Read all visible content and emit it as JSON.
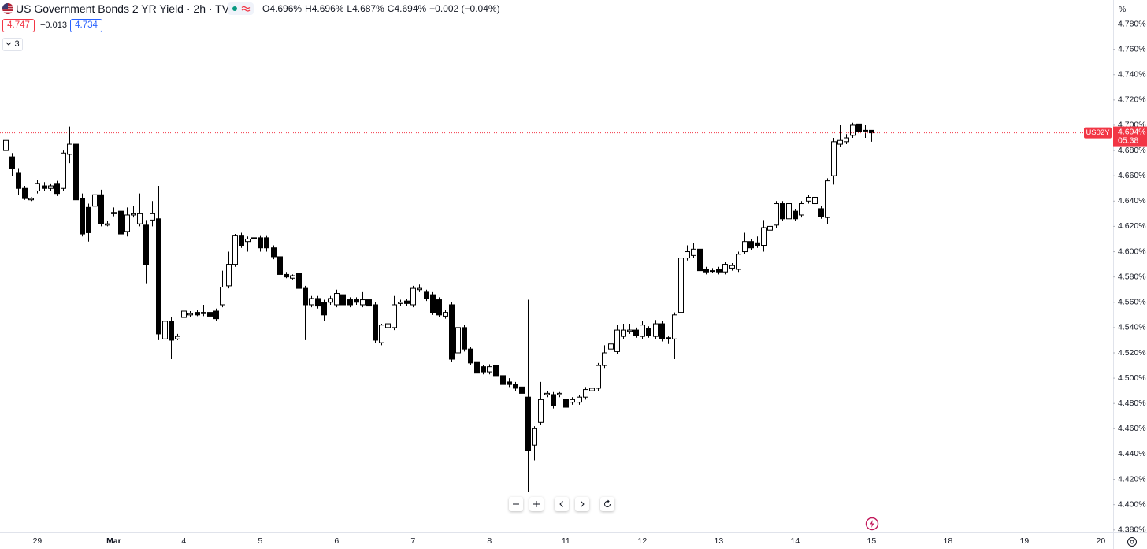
{
  "header": {
    "ohlc": [
      "O4.696%",
      "H4.696%",
      "L4.687%",
      "C4.694%"
    ],
    "change": "−0.002 (−0.04%)",
    "bid": "4.747",
    "spread": "−0.013",
    "ask": "4.734",
    "indicators": "3"
  },
  "chart_data": {
    "type": "candlestick",
    "title": "US Government Bonds 2 YR Yield · 2h · TVC",
    "y_unit": "%",
    "up_color": "#ffffff",
    "down_color": "#000000",
    "wick_color": "#000000",
    "ylim": [
      4.378,
      4.799
    ],
    "yticks": [
      {
        "value": 4.38,
        "label": "4.380%"
      },
      {
        "value": 4.4,
        "label": "4.400%"
      },
      {
        "value": 4.42,
        "label": "4.420%"
      },
      {
        "value": 4.44,
        "label": "4.440%"
      },
      {
        "value": 4.46,
        "label": "4.460%"
      },
      {
        "value": 4.48,
        "label": "4.480%"
      },
      {
        "value": 4.5,
        "label": "4.500%"
      },
      {
        "value": 4.52,
        "label": "4.520%"
      },
      {
        "value": 4.54,
        "label": "4.540%"
      },
      {
        "value": 4.56,
        "label": "4.560%"
      },
      {
        "value": 4.58,
        "label": "4.580%"
      },
      {
        "value": 4.6,
        "label": "4.600%"
      },
      {
        "value": 4.62,
        "label": "4.620%"
      },
      {
        "value": 4.64,
        "label": "4.640%"
      },
      {
        "value": 4.66,
        "label": "4.660%"
      },
      {
        "value": 4.68,
        "label": "4.680%"
      },
      {
        "value": 4.7,
        "label": "4.700%"
      },
      {
        "value": 4.72,
        "label": "4.720%"
      },
      {
        "value": 4.74,
        "label": "4.740%"
      },
      {
        "value": 4.76,
        "label": "4.760%"
      },
      {
        "value": 4.78,
        "label": "4.780%"
      }
    ],
    "grid": false,
    "last_price": {
      "value": 4.694,
      "label": "4.694%",
      "color": "#f23645"
    },
    "symbol": "US02Y",
    "countdown": "05:38",
    "categories": [
      null,
      null,
      null,
      null,
      null,
      "29",
      null,
      null,
      null,
      null,
      null,
      null,
      null,
      null,
      null,
      null,
      null,
      "Mar",
      null,
      null,
      null,
      null,
      null,
      null,
      null,
      null,
      null,
      null,
      "4",
      null,
      null,
      null,
      null,
      null,
      null,
      null,
      null,
      null,
      null,
      null,
      "5",
      null,
      null,
      null,
      null,
      null,
      null,
      null,
      null,
      null,
      null,
      null,
      "6",
      null,
      null,
      null,
      null,
      null,
      null,
      null,
      null,
      null,
      null,
      null,
      "7",
      null,
      null,
      null,
      null,
      null,
      null,
      null,
      null,
      null,
      null,
      null,
      "8",
      null,
      null,
      null,
      null,
      null,
      null,
      null,
      null,
      null,
      null,
      null,
      "11",
      null,
      null,
      null,
      null,
      null,
      null,
      null,
      null,
      null,
      null,
      null,
      "12",
      null,
      null,
      null,
      null,
      null,
      null,
      null,
      null,
      null,
      null,
      null,
      "13",
      null,
      null,
      null,
      null,
      null,
      null,
      null,
      null,
      null,
      null,
      null,
      "14",
      null,
      null,
      null,
      null,
      null,
      null,
      null,
      null,
      null,
      null,
      null,
      "15",
      null,
      null,
      null,
      null,
      null,
      null,
      null,
      null,
      null,
      null,
      null,
      "18",
      null,
      null,
      null,
      null,
      null,
      null,
      null,
      null,
      null,
      null,
      null,
      "19",
      null,
      null,
      null,
      null,
      null,
      null,
      null,
      null,
      null,
      null,
      null,
      "20"
    ],
    "open": [
      4.68,
      4.675,
      4.662,
      4.65,
      4.641,
      4.648,
      4.652,
      4.65,
      4.654,
      4.65,
      4.677,
      4.685,
      4.642,
      4.635,
      4.636,
      4.645,
      4.621,
      4.631,
      4.632,
      4.616,
      4.629,
      4.622,
      4.621,
      4.625,
      4.626,
      4.531,
      4.545,
      4.531,
      4.548,
      4.55,
      4.552,
      4.551,
      4.552,
      4.553,
      4.558,
      4.573,
      4.59,
      4.613,
      4.608,
      4.611,
      4.611,
      4.611,
      4.603,
      4.596,
      4.582,
      4.579,
      4.583,
      4.571,
      4.558,
      4.563,
      4.56,
      4.56,
      4.558,
      4.566,
      4.562,
      4.562,
      4.558,
      4.562,
      4.558,
      4.528,
      4.54,
      4.54,
      4.559,
      4.561,
      4.558,
      4.57,
      4.568,
      4.566,
      4.562,
      4.549,
      4.558,
      4.52,
      4.54,
      4.523,
      4.513,
      4.509,
      4.505,
      4.51,
      4.502,
      4.497,
      4.495,
      4.493,
      4.485,
      4.447,
      4.465,
      4.487,
      4.487,
      4.487,
      4.483,
      4.481,
      4.481,
      4.485,
      4.49,
      4.492,
      4.51,
      4.523,
      4.521,
      4.533,
      4.537,
      4.538,
      4.533,
      4.539,
      4.533,
      4.543,
      4.532,
      4.531,
      4.552,
      4.595,
      4.597,
      4.602,
      4.586,
      4.585,
      4.586,
      4.584,
      4.587,
      4.586,
      4.6,
      4.608,
      4.607,
      4.605,
      4.617,
      4.621,
      4.638,
      4.626,
      4.632,
      4.629,
      4.64,
      4.638,
      4.634,
      4.627,
      4.66,
      4.685,
      4.687,
      4.692,
      4.701,
      4.696,
      4.696,
      null,
      null,
      null,
      null,
      null,
      null,
      null,
      null,
      null,
      null,
      null,
      null,
      null,
      null,
      null,
      null,
      null,
      null,
      null,
      null,
      null,
      null,
      null,
      null,
      null,
      null,
      null,
      null,
      null,
      null,
      null,
      null,
      null,
      null,
      null,
      null
    ],
    "high": [
      4.693,
      4.678,
      4.666,
      4.652,
      4.643,
      4.657,
      4.655,
      4.654,
      4.656,
      4.68,
      4.699,
      4.702,
      4.646,
      4.638,
      4.65,
      4.649,
      4.624,
      4.635,
      4.635,
      4.635,
      4.636,
      4.646,
      4.625,
      4.64,
      4.652,
      4.547,
      4.548,
      4.535,
      4.558,
      4.553,
      4.554,
      4.558,
      4.56,
      4.555,
      4.585,
      4.6,
      4.614,
      4.615,
      4.612,
      4.613,
      4.613,
      4.613,
      4.605,
      4.598,
      4.584,
      4.582,
      4.585,
      4.573,
      4.565,
      4.565,
      4.562,
      4.565,
      4.57,
      4.568,
      4.564,
      4.564,
      4.568,
      4.564,
      4.56,
      4.543,
      4.545,
      4.565,
      4.562,
      4.563,
      4.573,
      4.574,
      4.57,
      4.568,
      4.564,
      4.554,
      4.56,
      4.545,
      4.542,
      4.525,
      4.515,
      4.51,
      4.511,
      4.512,
      4.504,
      4.5,
      4.497,
      4.495,
      4.562,
      4.462,
      4.497,
      4.49,
      4.489,
      4.489,
      4.485,
      4.485,
      4.487,
      4.493,
      4.494,
      4.512,
      4.526,
      4.53,
      4.542,
      4.543,
      4.543,
      4.54,
      4.545,
      4.541,
      4.546,
      4.545,
      4.533,
      4.552,
      4.62,
      4.605,
      4.607,
      4.604,
      4.588,
      4.587,
      4.588,
      4.592,
      4.591,
      4.6,
      4.615,
      4.61,
      4.612,
      4.625,
      4.622,
      4.64,
      4.64,
      4.64,
      4.634,
      4.64,
      4.645,
      4.65,
      4.636,
      4.658,
      4.69,
      4.7,
      4.693,
      4.702,
      4.702,
      4.7,
      4.696,
      null,
      null,
      null,
      null,
      null,
      null,
      null,
      null,
      null,
      null,
      null,
      null,
      null,
      null,
      null,
      null,
      null,
      null,
      null,
      null,
      null,
      null,
      null,
      null,
      null,
      null,
      null,
      null,
      null,
      null,
      null,
      null,
      null,
      null,
      null,
      null
    ],
    "low": [
      4.678,
      4.66,
      4.645,
      4.641,
      4.64,
      4.646,
      4.648,
      4.648,
      4.644,
      4.648,
      4.67,
      4.635,
      4.612,
      4.608,
      4.612,
      4.62,
      4.62,
      4.628,
      4.612,
      4.612,
      4.627,
      4.62,
      4.575,
      4.62,
      4.53,
      4.53,
      4.515,
      4.53,
      4.546,
      4.548,
      4.549,
      4.549,
      4.548,
      4.545,
      4.556,
      4.571,
      4.588,
      4.603,
      4.6,
      4.609,
      4.6,
      4.6,
      4.594,
      4.58,
      4.579,
      4.578,
      4.569,
      4.53,
      4.556,
      4.555,
      4.545,
      4.558,
      4.556,
      4.556,
      4.556,
      4.558,
      4.556,
      4.555,
      4.528,
      4.526,
      4.51,
      4.538,
      4.557,
      4.557,
      4.556,
      4.568,
      4.561,
      4.55,
      4.548,
      4.547,
      4.513,
      4.518,
      4.521,
      4.51,
      4.502,
      4.503,
      4.503,
      4.5,
      4.493,
      4.493,
      4.49,
      4.486,
      4.41,
      4.435,
      4.463,
      4.485,
      4.476,
      4.485,
      4.473,
      4.479,
      4.479,
      4.483,
      4.488,
      4.49,
      4.508,
      4.522,
      4.519,
      4.531,
      4.535,
      4.532,
      4.531,
      4.532,
      4.531,
      4.529,
      4.527,
      4.515,
      4.55,
      4.593,
      4.595,
      4.583,
      4.582,
      4.583,
      4.582,
      4.582,
      4.585,
      4.584,
      4.598,
      4.601,
      4.603,
      4.6,
      4.615,
      4.619,
      4.624,
      4.624,
      4.624,
      4.627,
      4.638,
      4.636,
      4.626,
      4.622,
      4.653,
      4.683,
      4.685,
      4.69,
      4.693,
      4.69,
      4.687,
      null,
      null,
      null,
      null,
      null,
      null,
      null,
      null,
      null,
      null,
      null,
      null,
      null,
      null,
      null,
      null,
      null,
      null,
      null,
      null,
      null,
      null,
      null,
      null,
      null,
      null,
      null,
      null,
      null,
      null,
      null,
      null,
      null,
      null,
      null,
      null
    ],
    "close": [
      4.688,
      4.666,
      4.65,
      4.642,
      4.642,
      4.654,
      4.65,
      4.652,
      4.646,
      4.678,
      4.685,
      4.641,
      4.614,
      4.615,
      4.645,
      4.622,
      4.622,
      4.63,
      4.614,
      4.629,
      4.63,
      4.63,
      4.59,
      4.63,
      4.535,
      4.545,
      4.53,
      4.533,
      4.553,
      4.551,
      4.55,
      4.552,
      4.549,
      4.547,
      4.572,
      4.59,
      4.613,
      4.605,
      4.61,
      4.611,
      4.603,
      4.603,
      4.596,
      4.582,
      4.58,
      4.581,
      4.571,
      4.558,
      4.563,
      4.557,
      4.55,
      4.563,
      4.567,
      4.558,
      4.558,
      4.56,
      4.562,
      4.557,
      4.53,
      4.542,
      4.543,
      4.558,
      4.56,
      4.559,
      4.571,
      4.571,
      4.563,
      4.552,
      4.55,
      4.552,
      4.515,
      4.54,
      4.523,
      4.512,
      4.504,
      4.505,
      4.509,
      4.502,
      4.495,
      4.495,
      4.492,
      4.488,
      4.443,
      4.46,
      4.483,
      4.488,
      4.478,
      4.488,
      4.477,
      4.483,
      4.485,
      4.491,
      4.492,
      4.51,
      4.52,
      4.527,
      4.538,
      4.538,
      4.538,
      4.534,
      4.542,
      4.534,
      4.543,
      4.531,
      4.531,
      4.55,
      4.595,
      4.6,
      4.602,
      4.585,
      4.584,
      4.585,
      4.584,
      4.59,
      4.589,
      4.598,
      4.608,
      4.603,
      4.605,
      4.619,
      4.62,
      4.638,
      4.626,
      4.638,
      4.626,
      4.638,
      4.643,
      4.643,
      4.628,
      4.656,
      4.687,
      4.688,
      4.69,
      4.7,
      4.695,
      4.696,
      4.694,
      null,
      null,
      null,
      null,
      null,
      null,
      null,
      null,
      null,
      null,
      null,
      null,
      null,
      null,
      null,
      null,
      null,
      null,
      null,
      null,
      null,
      null,
      null,
      null,
      null,
      null,
      null,
      null,
      null,
      null,
      null,
      null,
      null,
      null,
      null,
      null
    ]
  }
}
